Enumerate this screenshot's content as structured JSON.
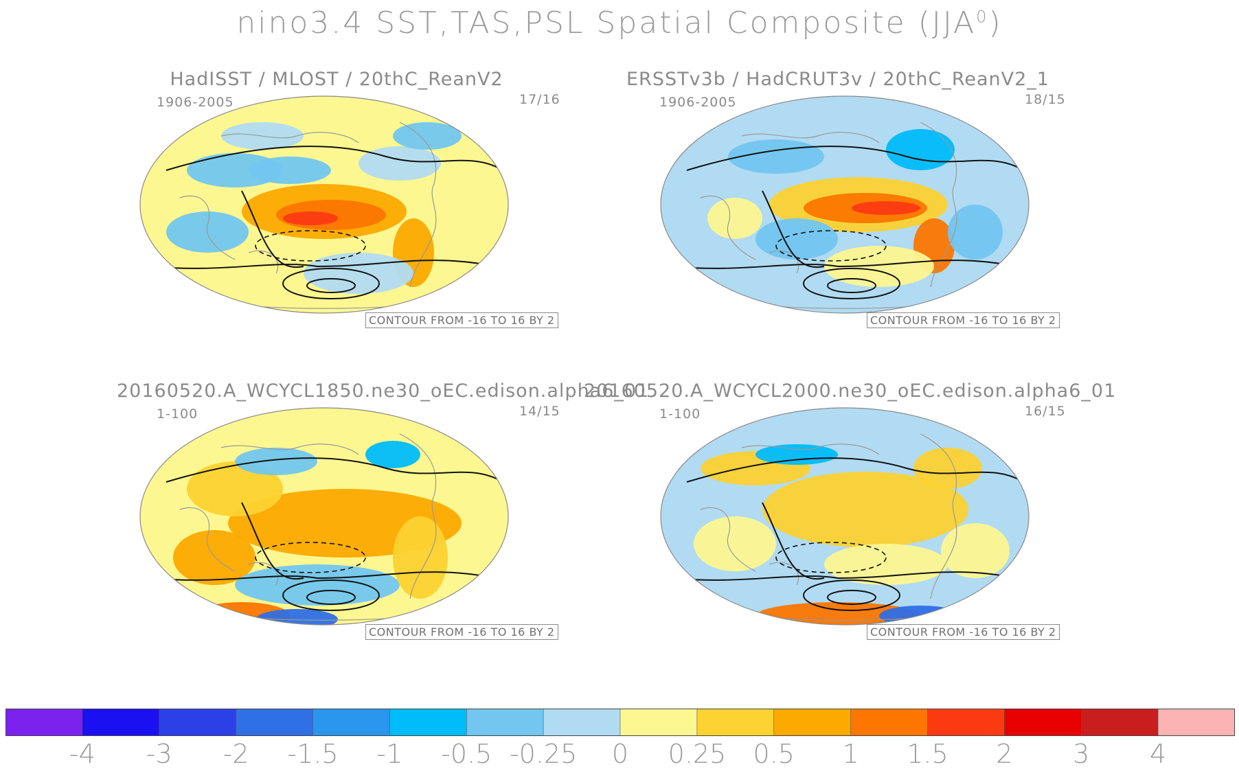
{
  "title": "nino3.4 SST,TAS,PSL Spatial Composite (JJA",
  "title_sup": "0",
  "title_close": ")",
  "panels": [
    {
      "title": "HadISST / MLOST / 20thC_ReanV2",
      "years": "1906-2005",
      "count": "17/16",
      "contour_note": "CONTOUR FROM -16 TO 16 BY 2"
    },
    {
      "title": "ERSSTv3b / HadCRUT3v / 20thC_ReanV2_1",
      "years": "1906-2005",
      "count": "18/15",
      "contour_note": "CONTOUR FROM -16 TO 16 BY 2"
    },
    {
      "title": "20160520.A_WCYCL1850.ne30_oEC.edison.alpha6_01",
      "years": "1-100",
      "count": "14/15",
      "contour_note": "CONTOUR FROM -16 TO 16 BY 2"
    },
    {
      "title": "20160520.A_WCYCL2000.ne30_oEC.edison.alpha6_01",
      "years": "1-100",
      "count": "16/15",
      "contour_note": "CONTOUR FROM -16 TO 16 BY 2"
    }
  ],
  "colorbar": {
    "colors": [
      "#7b22ee",
      "#1a10f2",
      "#2c40e8",
      "#2f6fe6",
      "#2a96ee",
      "#00bcfa",
      "#72c6f0",
      "#b1dbf2",
      "#fdf791",
      "#fcd232",
      "#fca900",
      "#fc7600",
      "#fc3a12",
      "#e80000",
      "#c81e1e",
      "#fcb3b3"
    ],
    "labels": [
      "-4",
      "-3",
      "-2",
      "-1.5",
      "-1",
      "-0.5",
      "-0.25",
      "0",
      "0.25",
      "0.5",
      "1",
      "1.5",
      "2",
      "3",
      "4"
    ]
  },
  "legend_colors": {
    "negative_strong": "#2a96ee",
    "negative_weak": "#b1dbf2",
    "positive_weak": "#fdf791",
    "positive_mid": "#fcd232",
    "positive_strong": "#fc3a12",
    "land_mask": "#ffffff"
  }
}
